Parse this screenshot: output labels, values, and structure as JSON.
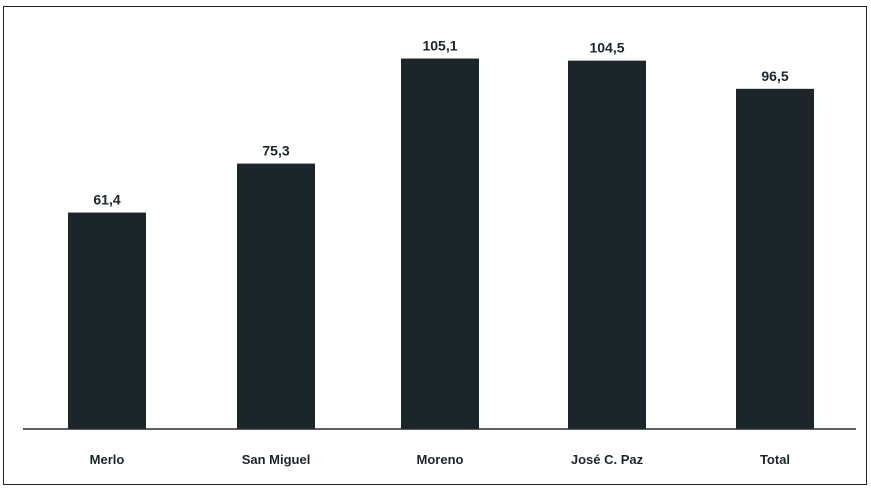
{
  "chart_data": {
    "type": "bar",
    "categories": [
      "Merlo",
      "San Miguel",
      "Moreno",
      "José C. Paz",
      "Total"
    ],
    "values": [
      61.4,
      75.3,
      105.1,
      104.5,
      96.5
    ],
    "value_labels": [
      "61,4",
      "75,3",
      "105,1",
      "104,5",
      "96,5"
    ],
    "title": "",
    "xlabel": "",
    "ylabel": "",
    "ylim": [
      0,
      120
    ],
    "grid": false,
    "legend": "none",
    "bar_color": "#1b262b"
  }
}
